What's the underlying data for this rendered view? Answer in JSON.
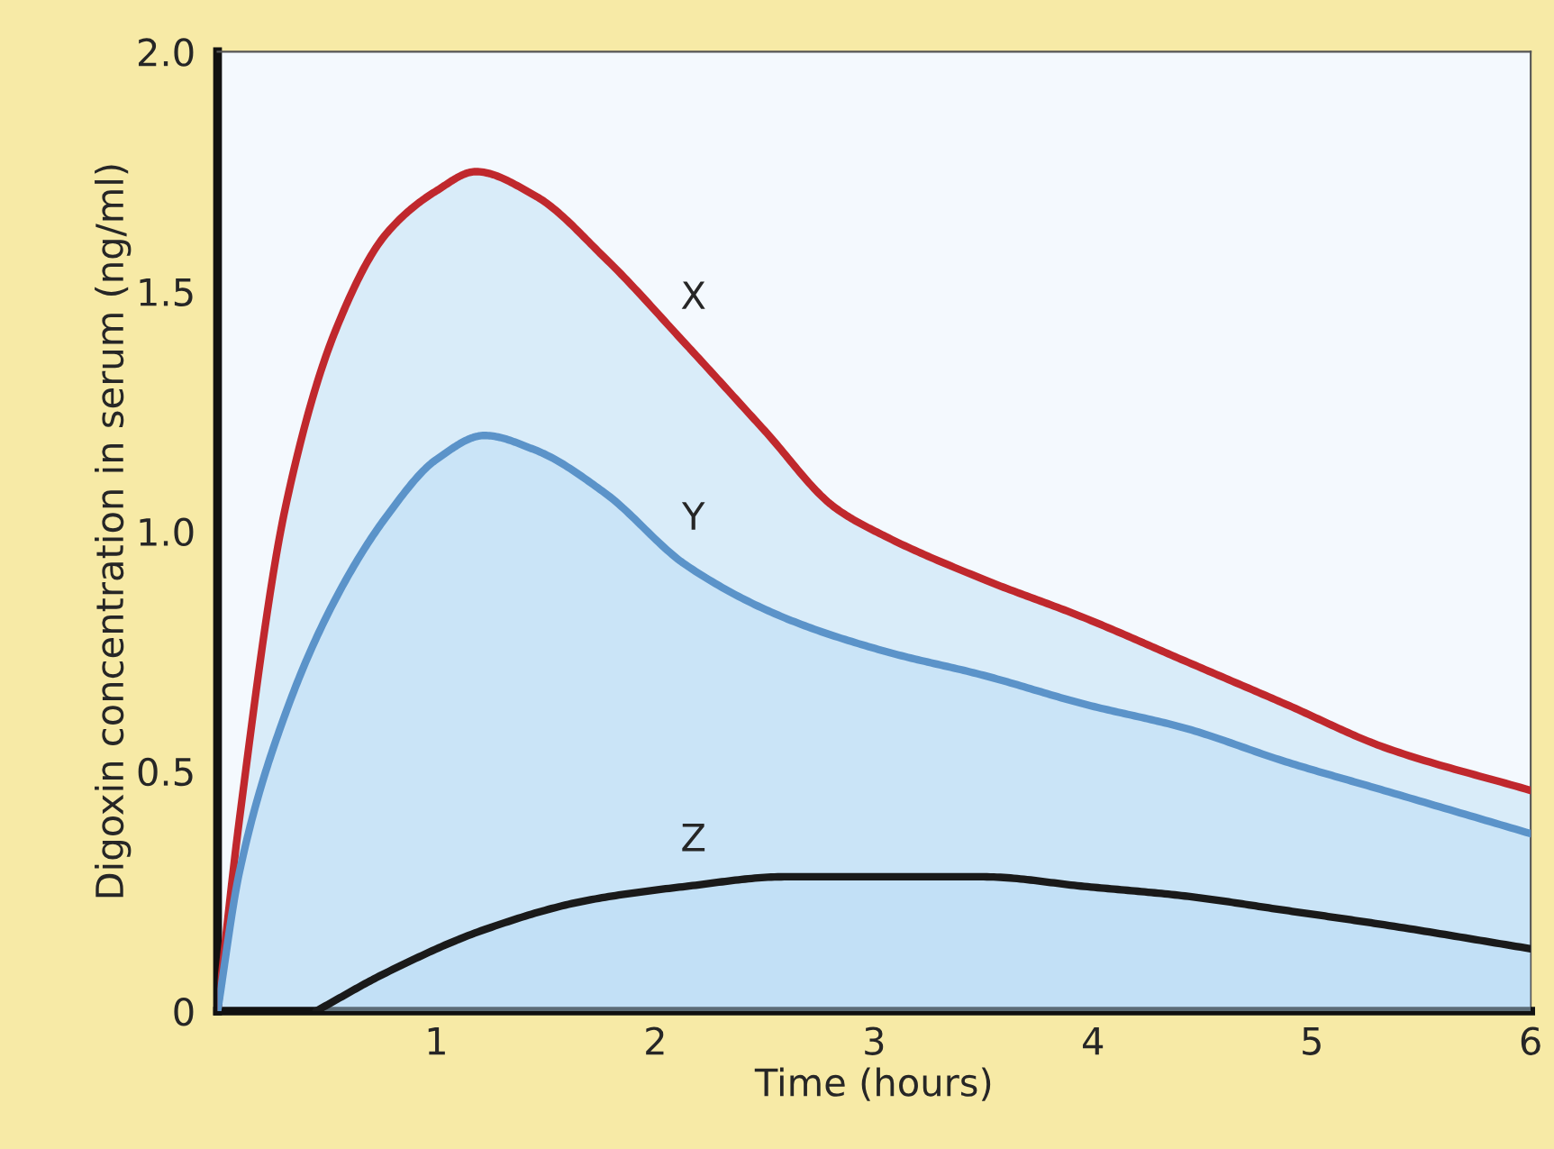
{
  "chart_data": {
    "type": "line",
    "xlabel": "Time (hours)",
    "ylabel": "Digoxin concentration in serum (ng/ml)",
    "xlim": [
      0,
      6
    ],
    "ylim": [
      0,
      2.0
    ],
    "xticks": [
      1,
      2,
      3,
      4,
      5,
      6
    ],
    "yticks": [
      0,
      0.5,
      {
        "value": 1.0,
        "label": "1.0"
      },
      1.5,
      {
        "value": 2.0,
        "label": "2.0"
      }
    ],
    "grid": false,
    "legend": false,
    "series": [
      {
        "name": "X",
        "color": "#c0282d",
        "x": [
          0,
          0.1,
          0.31,
          0.54,
          0.77,
          1.0,
          1.18,
          1.45,
          1.77,
          2.14,
          2.5,
          2.82,
          3.05,
          3.5,
          3.96,
          4.42,
          4.88,
          5.33,
          6.0
        ],
        "values": [
          0,
          0.4,
          1.05,
          1.42,
          1.62,
          1.71,
          1.75,
          1.7,
          1.57,
          1.39,
          1.21,
          1.05,
          0.99,
          0.9,
          0.82,
          0.73,
          0.64,
          0.55,
          0.46
        ]
      },
      {
        "name": "Y",
        "color": "#5b93c9",
        "x": [
          0,
          0.1,
          0.31,
          0.54,
          0.77,
          1.0,
          1.22,
          1.45,
          1.77,
          2.14,
          2.59,
          3.05,
          3.5,
          3.96,
          4.42,
          4.88,
          5.33,
          6.0
        ],
        "values": [
          0,
          0.29,
          0.62,
          0.86,
          1.03,
          1.15,
          1.2,
          1.17,
          1.08,
          0.93,
          0.82,
          0.75,
          0.7,
          0.64,
          0.59,
          0.52,
          0.46,
          0.37
        ]
      },
      {
        "name": "Z",
        "color": "#1a1a1a",
        "x": [
          0.45,
          0.77,
          1.22,
          1.68,
          2.14,
          2.59,
          3.05,
          3.5,
          3.96,
          4.42,
          4.88,
          5.33,
          6.0
        ],
        "values": [
          0,
          0.08,
          0.17,
          0.23,
          0.26,
          0.28,
          0.28,
          0.28,
          0.26,
          0.24,
          0.21,
          0.18,
          0.13
        ]
      }
    ]
  }
}
